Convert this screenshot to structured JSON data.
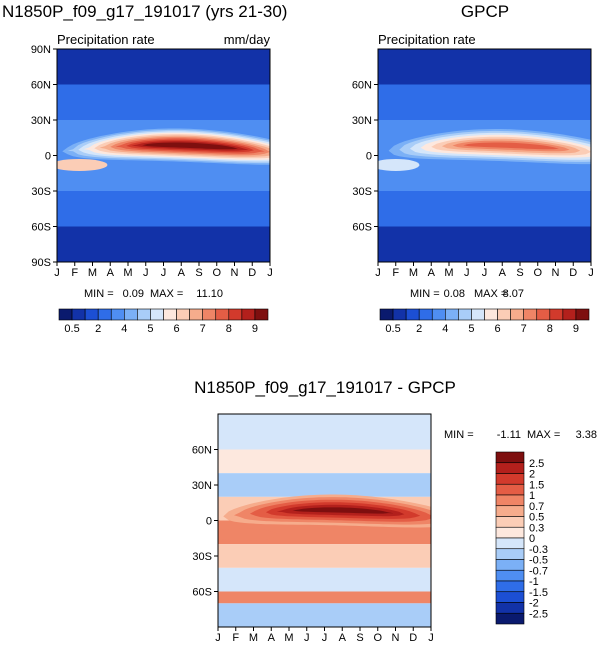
{
  "chart_data": [
    {
      "type": "heatmap",
      "title": "N1850P_f09_g17_191017 (yrs 21-30)",
      "subtitle_left": "Precipitation rate",
      "subtitle_right": "mm/day",
      "x_ticks": [
        "J",
        "F",
        "M",
        "A",
        "M",
        "J",
        "J",
        "A",
        "S",
        "O",
        "N",
        "D",
        "J"
      ],
      "y_ticks": [
        "90N",
        "60N",
        "30N",
        "0",
        "30S",
        "60S",
        "90S"
      ],
      "stats": {
        "min_label": "MIN =",
        "min": "0.09",
        "max_label": "MAX =",
        "max": "11.10"
      },
      "colorbar_labels": [
        "0.5",
        "2",
        "4",
        "5",
        "6",
        "7",
        "8",
        "9"
      ],
      "colors": [
        "#0a1a6e",
        "#1232a8",
        "#1c4fd4",
        "#2f6de8",
        "#4f8ef2",
        "#7bb0f6",
        "#a9cdf8",
        "#d5e6fa",
        "#fde8de",
        "#fbcdb6",
        "#f6ac8c",
        "#ef8566",
        "#e45d45",
        "#d23a2c",
        "#b3201c",
        "#7e0f0f"
      ],
      "bands": [
        {
          "lat": [
            60,
            90
          ],
          "level": 1
        },
        {
          "lat": [
            30,
            60
          ],
          "level": 3
        },
        {
          "lat": [
            -30,
            30
          ],
          "level": 4
        },
        {
          "lat": [
            -60,
            -30
          ],
          "level": 3
        },
        {
          "lat": [
            -90,
            -60
          ],
          "level": 1
        }
      ],
      "itcz": {
        "peak_level": 15,
        "peak_month": 7.5,
        "lat_jan": 3,
        "lat_jul": 9
      },
      "spcz": {
        "level": 9,
        "months": [
          0,
          2.5
        ],
        "lat": -8
      }
    },
    {
      "type": "heatmap",
      "title": "GPCP",
      "subtitle_left": "Precipitation rate",
      "x_ticks": [
        "J",
        "F",
        "M",
        "A",
        "M",
        "J",
        "J",
        "A",
        "S",
        "O",
        "N",
        "D",
        "J"
      ],
      "y_ticks": [
        "60N",
        "30N",
        "0",
        "30S",
        "60S"
      ],
      "stats": {
        "min_label": "MIN =",
        "min": "0.08",
        "max_label": "MAX =",
        "max": "8.07"
      },
      "colorbar_labels": [
        "0.5",
        "2",
        "4",
        "5",
        "6",
        "7",
        "8",
        "9"
      ],
      "colors": [
        "#0a1a6e",
        "#1232a8",
        "#1c4fd4",
        "#2f6de8",
        "#4f8ef2",
        "#7bb0f6",
        "#a9cdf8",
        "#d5e6fa",
        "#fde8de",
        "#fbcdb6",
        "#f6ac8c",
        "#ef8566",
        "#e45d45",
        "#d23a2c",
        "#b3201c",
        "#7e0f0f"
      ],
      "bands": [
        {
          "lat": [
            60,
            90
          ],
          "level": 1
        },
        {
          "lat": [
            30,
            60
          ],
          "level": 3
        },
        {
          "lat": [
            -30,
            30
          ],
          "level": 4
        },
        {
          "lat": [
            -60,
            -30
          ],
          "level": 3
        },
        {
          "lat": [
            -90,
            -60
          ],
          "level": 1
        }
      ],
      "itcz": {
        "peak_level": 12,
        "peak_month": 7.5,
        "lat_jan": 3,
        "lat_jul": 9
      },
      "spcz": {
        "level": 7,
        "months": [
          0,
          2.0
        ],
        "lat": -8
      }
    },
    {
      "type": "heatmap",
      "title": "N1850P_f09_g17_191017 - GPCP",
      "x_ticks": [
        "J",
        "F",
        "M",
        "A",
        "M",
        "J",
        "J",
        "A",
        "S",
        "O",
        "N",
        "D",
        "J"
      ],
      "y_ticks": [
        "60N",
        "30N",
        "0",
        "30S",
        "60S"
      ],
      "stats": {
        "min_label": "MIN =",
        "min": "-1.11",
        "max_label": "MAX =",
        "max": "3.38"
      },
      "colorbar_labels": [
        "2.5",
        "2",
        "1.5",
        "1",
        "0.7",
        "0.5",
        "0.3",
        "0",
        "-0.3",
        "-0.5",
        "-0.7",
        "-1",
        "-1.5",
        "-2",
        "-2.5"
      ],
      "colors": [
        "#7e0f0f",
        "#b3201c",
        "#d23a2c",
        "#e45d45",
        "#ef8566",
        "#f6ac8c",
        "#fbcdb6",
        "#fde8de",
        "#d5e6fa",
        "#a9cdf8",
        "#7bb0f6",
        "#4f8ef2",
        "#2f6de8",
        "#1c4fd4",
        "#1232a8",
        "#0a1a6e"
      ],
      "bands": [
        {
          "lat": [
            60,
            90
          ],
          "level": 8
        },
        {
          "lat": [
            40,
            60
          ],
          "level": 7
        },
        {
          "lat": [
            20,
            40
          ],
          "level": 9
        },
        {
          "lat": [
            0,
            20
          ],
          "level": 6
        },
        {
          "lat": [
            -20,
            0
          ],
          "level": 4
        },
        {
          "lat": [
            -40,
            -20
          ],
          "level": 6
        },
        {
          "lat": [
            -60,
            -40
          ],
          "level": 8
        },
        {
          "lat": [
            -70,
            -60
          ],
          "level": 4
        },
        {
          "lat": [
            -90,
            -70
          ],
          "level": 9
        }
      ],
      "itcz": {
        "peak_level": 0,
        "peak_month": 7.0,
        "lat_jan": 3,
        "lat_jul": 9
      },
      "spcz": {
        "level": 4,
        "months": [
          0,
          3.0
        ],
        "lat": -12
      }
    }
  ]
}
